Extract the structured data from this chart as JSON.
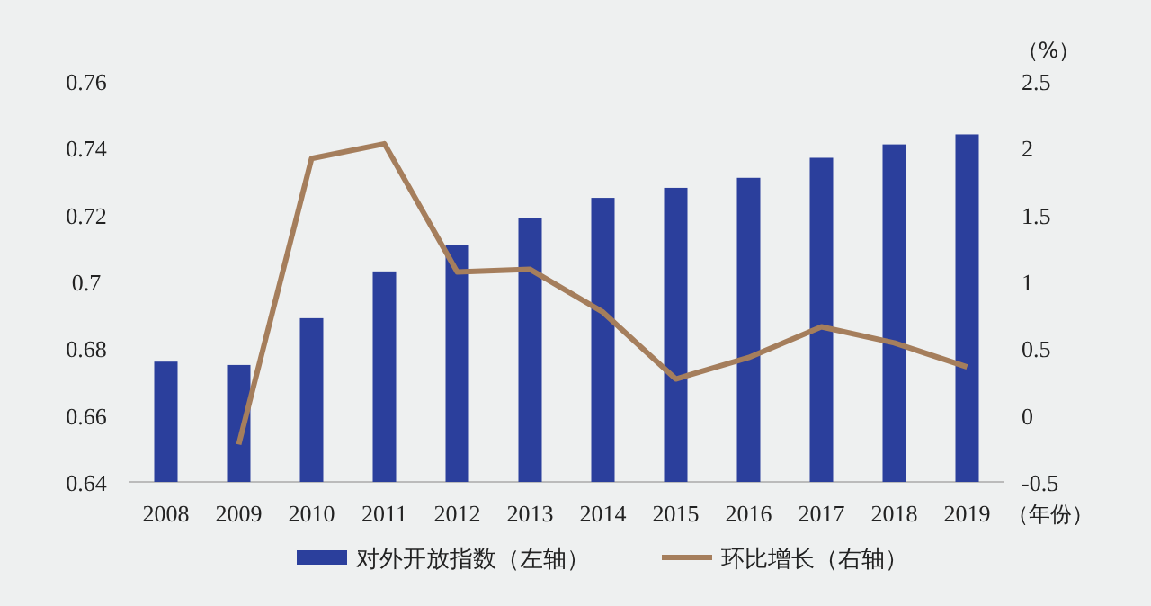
{
  "chart_data": {
    "type": "bar",
    "categories": [
      "2008",
      "2009",
      "2010",
      "2011",
      "2012",
      "2013",
      "2014",
      "2015",
      "2016",
      "2017",
      "2018",
      "2019"
    ],
    "xlabel": "（年份）",
    "y2label": "（%）",
    "series": [
      {
        "name": "对外开放指数（左轴）",
        "color": "#2b3f9c",
        "values": [
          0.676,
          0.675,
          0.689,
          0.703,
          0.711,
          0.719,
          0.725,
          0.728,
          0.731,
          0.737,
          0.741,
          0.744
        ]
      },
      {
        "name": "环比增长（右轴）",
        "type": "line",
        "axis": "y2",
        "color": "#a57e5c",
        "values": [
          null,
          -0.22,
          1.92,
          2.03,
          1.07,
          1.09,
          0.77,
          0.27,
          0.43,
          0.66,
          0.54,
          0.36
        ]
      }
    ],
    "ylim": [
      0.64,
      0.76
    ],
    "yticks": [
      0.64,
      0.66,
      0.68,
      0.7,
      0.72,
      0.74,
      0.76
    ],
    "y2lim": [
      -0.5,
      2.5
    ],
    "y2ticks": [
      -0.5,
      0,
      0.5,
      1,
      1.5,
      2,
      2.5
    ],
    "legend": "bottom",
    "grid": false,
    "marker": "none",
    "line_style": "solid"
  }
}
